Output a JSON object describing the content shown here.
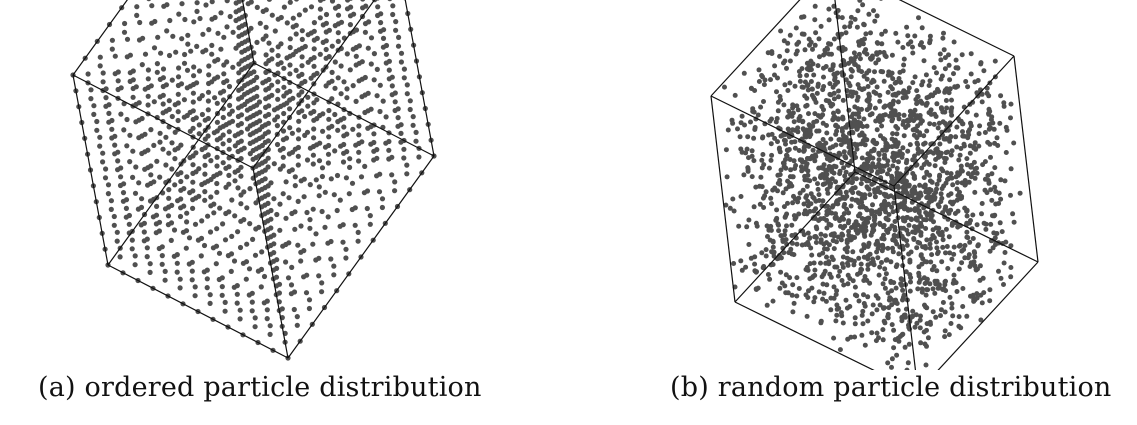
{
  "figure": {
    "panels": [
      {
        "id": "a",
        "caption": "(a) ordered particle distribution",
        "arrangement": "ordered lattice"
      },
      {
        "id": "b",
        "caption": "(b) random particle distribution",
        "arrangement": "random"
      }
    ],
    "colors": {
      "particle": "#505050",
      "edge": "#111111",
      "background": "#ffffff"
    }
  }
}
